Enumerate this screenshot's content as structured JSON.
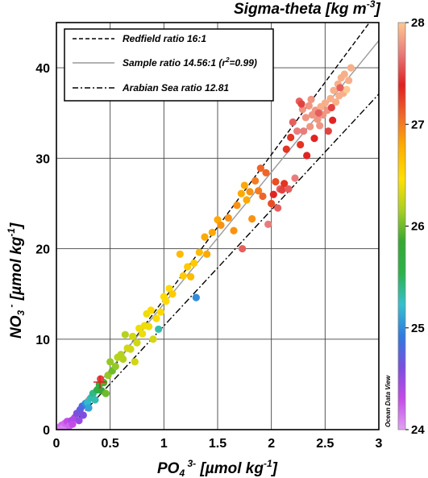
{
  "chart_data": {
    "type": "scatter",
    "xlabel": "PO4 3- [µmol kg-1]",
    "ylabel": "NO3 - [µmol kg-1]",
    "xlim": [
      0,
      3
    ],
    "ylim": [
      0,
      45
    ],
    "xticks": [
      "0",
      "0.5",
      "1",
      "1.5",
      "2",
      "2.5",
      "3"
    ],
    "yticks": [
      "0",
      "10",
      "20",
      "30",
      "40"
    ],
    "grid": true,
    "legend_position": "top-left",
    "colorbar": {
      "title": "Sigma-theta [kg m-3]",
      "range": [
        24,
        28
      ],
      "ticks": [
        "24",
        "25",
        "26",
        "27",
        "28"
      ],
      "colors": [
        "#e2a0f5",
        "#c44ae8",
        "#7a4fe0",
        "#2f7be0",
        "#35c0cf",
        "#2bb24a",
        "#35a832",
        "#a8cf22",
        "#ffe000",
        "#ffb000",
        "#f06a2a",
        "#e02020",
        "#e87a7a",
        "#ffc890"
      ]
    },
    "watermark": "Ocean Data View",
    "lines": [
      {
        "name": "Redfield ratio 16:1",
        "style": "dashed",
        "color": "#000000",
        "x": [
          0.1,
          2.95
        ],
        "y": [
          0.0,
          45.6
        ]
      },
      {
        "name": "Sample ratio 14.56:1 (r²=0.99)",
        "style": "solid",
        "color": "#999999",
        "x": [
          0.05,
          3.0
        ],
        "y": [
          0.1,
          43.0
        ]
      },
      {
        "name": "Arabian Sea ratio 12.81",
        "style": "dashdot",
        "color": "#000000",
        "x": [
          0.05,
          3.0
        ],
        "y": [
          -0.7,
          37.1
        ]
      }
    ],
    "legend": {
      "redfield": "Redfield ratio 16:1",
      "sample": "Sample ratio 14.56:1 (r",
      "sample_sup": "2",
      "sample_tail": "=0.99)",
      "arabian": "Arabian Sea ratio 12.81"
    },
    "points": [
      {
        "x": 0.03,
        "y": 0.3,
        "s": 24.1
      },
      {
        "x": 0.05,
        "y": 0.5,
        "s": 24.2
      },
      {
        "x": 0.06,
        "y": 0.2,
        "s": 24.1
      },
      {
        "x": 0.08,
        "y": 0.7,
        "s": 24.2
      },
      {
        "x": 0.1,
        "y": 0.9,
        "s": 24.3
      },
      {
        "x": 0.12,
        "y": 0.4,
        "s": 24.2
      },
      {
        "x": 0.14,
        "y": 1.0,
        "s": 24.4
      },
      {
        "x": 0.15,
        "y": 0.6,
        "s": 24.3
      },
      {
        "x": 0.17,
        "y": 1.3,
        "s": 24.4
      },
      {
        "x": 0.19,
        "y": 1.8,
        "s": 24.6
      },
      {
        "x": 0.21,
        "y": 1.0,
        "s": 24.5
      },
      {
        "x": 0.22,
        "y": 2.2,
        "s": 24.7
      },
      {
        "x": 0.24,
        "y": 2.6,
        "s": 24.8
      },
      {
        "x": 0.25,
        "y": 1.6,
        "s": 24.6
      },
      {
        "x": 0.27,
        "y": 2.9,
        "s": 25.0
      },
      {
        "x": 0.29,
        "y": 3.0,
        "s": 25.2
      },
      {
        "x": 0.3,
        "y": 2.4,
        "s": 25.1
      },
      {
        "x": 0.32,
        "y": 3.5,
        "s": 25.3
      },
      {
        "x": 0.34,
        "y": 4.0,
        "s": 25.4
      },
      {
        "x": 0.36,
        "y": 3.3,
        "s": 25.3
      },
      {
        "x": 0.38,
        "y": 4.4,
        "s": 25.6
      },
      {
        "x": 0.4,
        "y": 5.0,
        "s": 25.7
      },
      {
        "x": 0.42,
        "y": 4.3,
        "s": 25.8
      },
      {
        "x": 0.44,
        "y": 5.2,
        "s": 25.9
      },
      {
        "x": 0.41,
        "y": 5.6,
        "s": 27.5
      },
      {
        "x": 0.46,
        "y": 4.0,
        "s": 26.0
      },
      {
        "x": 0.48,
        "y": 6.0,
        "s": 26.1
      },
      {
        "x": 0.5,
        "y": 7.5,
        "s": 26.1
      },
      {
        "x": 0.52,
        "y": 6.5,
        "s": 26.0
      },
      {
        "x": 0.55,
        "y": 7.0,
        "s": 26.1
      },
      {
        "x": 0.57,
        "y": 8.0,
        "s": 26.2
      },
      {
        "x": 0.6,
        "y": 8.3,
        "s": 26.2
      },
      {
        "x": 0.62,
        "y": 7.8,
        "s": 26.2
      },
      {
        "x": 0.64,
        "y": 10.5,
        "s": 26.2
      },
      {
        "x": 0.66,
        "y": 9.0,
        "s": 26.3
      },
      {
        "x": 0.69,
        "y": 8.9,
        "s": 26.3
      },
      {
        "x": 0.71,
        "y": 10.3,
        "s": 26.3
      },
      {
        "x": 0.73,
        "y": 7.5,
        "s": 26.3
      },
      {
        "x": 0.75,
        "y": 9.6,
        "s": 26.3
      },
      {
        "x": 0.77,
        "y": 11.2,
        "s": 26.4
      },
      {
        "x": 0.8,
        "y": 10.6,
        "s": 26.4
      },
      {
        "x": 0.82,
        "y": 11.5,
        "s": 26.4
      },
      {
        "x": 0.84,
        "y": 12.8,
        "s": 26.4
      },
      {
        "x": 0.86,
        "y": 11.4,
        "s": 26.4
      },
      {
        "x": 0.88,
        "y": 13.2,
        "s": 26.5
      },
      {
        "x": 0.9,
        "y": 10.0,
        "s": 26.3
      },
      {
        "x": 0.93,
        "y": 12.3,
        "s": 26.5
      },
      {
        "x": 0.95,
        "y": 11.1,
        "s": 25.3
      },
      {
        "x": 0.97,
        "y": 13.0,
        "s": 26.5
      },
      {
        "x": 1.0,
        "y": 14.7,
        "s": 26.5
      },
      {
        "x": 1.02,
        "y": 14.2,
        "s": 26.5
      },
      {
        "x": 1.05,
        "y": 15.6,
        "s": 26.5
      },
      {
        "x": 1.08,
        "y": 15.0,
        "s": 26.6
      },
      {
        "x": 1.15,
        "y": 19.4,
        "s": 26.7
      },
      {
        "x": 1.18,
        "y": 17.0,
        "s": 26.6
      },
      {
        "x": 1.22,
        "y": 18.0,
        "s": 26.6
      },
      {
        "x": 1.25,
        "y": 16.9,
        "s": 26.7
      },
      {
        "x": 1.28,
        "y": 18.4,
        "s": 26.6
      },
      {
        "x": 1.3,
        "y": 14.6,
        "s": 25.0
      },
      {
        "x": 1.33,
        "y": 19.6,
        "s": 26.7
      },
      {
        "x": 1.38,
        "y": 21.3,
        "s": 26.8
      },
      {
        "x": 1.4,
        "y": 19.4,
        "s": 26.8
      },
      {
        "x": 1.45,
        "y": 21.8,
        "s": 26.8
      },
      {
        "x": 1.5,
        "y": 23.2,
        "s": 26.8
      },
      {
        "x": 1.53,
        "y": 22.6,
        "s": 26.9
      },
      {
        "x": 1.6,
        "y": 23.4,
        "s": 26.9
      },
      {
        "x": 1.65,
        "y": 22.0,
        "s": 26.9
      },
      {
        "x": 1.68,
        "y": 24.8,
        "s": 26.9
      },
      {
        "x": 1.72,
        "y": 26.1,
        "s": 26.8
      },
      {
        "x": 1.73,
        "y": 20.0,
        "s": 27.6
      },
      {
        "x": 1.75,
        "y": 27.0,
        "s": 26.8
      },
      {
        "x": 1.77,
        "y": 25.4,
        "s": 26.8
      },
      {
        "x": 1.8,
        "y": 26.3,
        "s": 26.9
      },
      {
        "x": 1.82,
        "y": 23.3,
        "s": 26.9
      },
      {
        "x": 1.85,
        "y": 27.5,
        "s": 27.0
      },
      {
        "x": 1.88,
        "y": 26.4,
        "s": 27.0
      },
      {
        "x": 1.9,
        "y": 28.9,
        "s": 27.1
      },
      {
        "x": 1.92,
        "y": 25.8,
        "s": 27.1
      },
      {
        "x": 1.95,
        "y": 28.4,
        "s": 27.1
      },
      {
        "x": 1.97,
        "y": 22.7,
        "s": 27.7
      },
      {
        "x": 2.0,
        "y": 25.0,
        "s": 27.2
      },
      {
        "x": 2.02,
        "y": 26.0,
        "s": 27.4
      },
      {
        "x": 2.04,
        "y": 27.4,
        "s": 27.2
      },
      {
        "x": 2.06,
        "y": 24.5,
        "s": 27.6
      },
      {
        "x": 2.08,
        "y": 26.6,
        "s": 27.6
      },
      {
        "x": 2.1,
        "y": 26.5,
        "s": 27.5
      },
      {
        "x": 2.12,
        "y": 27.2,
        "s": 27.3
      },
      {
        "x": 2.14,
        "y": 31.0,
        "s": 27.3
      },
      {
        "x": 2.16,
        "y": 26.6,
        "s": 27.6
      },
      {
        "x": 2.18,
        "y": 32.3,
        "s": 27.3
      },
      {
        "x": 2.2,
        "y": 34.0,
        "s": 27.6
      },
      {
        "x": 2.22,
        "y": 27.8,
        "s": 27.7
      },
      {
        "x": 2.24,
        "y": 33.0,
        "s": 27.7
      },
      {
        "x": 2.26,
        "y": 36.3,
        "s": 27.6
      },
      {
        "x": 2.27,
        "y": 31.5,
        "s": 27.3
      },
      {
        "x": 2.29,
        "y": 35.4,
        "s": 27.8
      },
      {
        "x": 2.3,
        "y": 33.0,
        "s": 27.7
      },
      {
        "x": 2.32,
        "y": 34.5,
        "s": 27.8
      },
      {
        "x": 2.33,
        "y": 30.3,
        "s": 27.4
      },
      {
        "x": 2.35,
        "y": 35.8,
        "s": 27.8
      },
      {
        "x": 2.36,
        "y": 33.5,
        "s": 27.8
      },
      {
        "x": 2.38,
        "y": 34.8,
        "s": 27.8
      },
      {
        "x": 2.4,
        "y": 32.2,
        "s": 27.4
      },
      {
        "x": 2.41,
        "y": 35.3,
        "s": 27.8
      },
      {
        "x": 2.43,
        "y": 34.3,
        "s": 27.8
      },
      {
        "x": 2.45,
        "y": 33.6,
        "s": 27.8
      },
      {
        "x": 2.46,
        "y": 35.7,
        "s": 27.9
      },
      {
        "x": 2.48,
        "y": 34.8,
        "s": 27.8
      },
      {
        "x": 2.5,
        "y": 36.1,
        "s": 27.9
      },
      {
        "x": 2.52,
        "y": 35.3,
        "s": 27.8
      },
      {
        "x": 2.53,
        "y": 33.0,
        "s": 27.5
      },
      {
        "x": 2.55,
        "y": 36.6,
        "s": 27.9
      },
      {
        "x": 2.57,
        "y": 34.2,
        "s": 27.4
      },
      {
        "x": 2.58,
        "y": 37.5,
        "s": 27.9
      },
      {
        "x": 2.6,
        "y": 36.2,
        "s": 27.9
      },
      {
        "x": 2.62,
        "y": 38.2,
        "s": 27.9
      },
      {
        "x": 2.63,
        "y": 36.9,
        "s": 27.9
      },
      {
        "x": 2.65,
        "y": 38.9,
        "s": 27.9
      },
      {
        "x": 2.67,
        "y": 37.2,
        "s": 27.9
      },
      {
        "x": 2.68,
        "y": 39.3,
        "s": 27.9
      },
      {
        "x": 2.7,
        "y": 37.6,
        "s": 28.0
      },
      {
        "x": 2.72,
        "y": 38.6,
        "s": 27.9
      },
      {
        "x": 2.74,
        "y": 40.0,
        "s": 27.9
      },
      {
        "x": 2.28,
        "y": 36.0,
        "s": 27.5
      },
      {
        "x": 2.37,
        "y": 36.5,
        "s": 27.8
      },
      {
        "x": 2.44,
        "y": 35.0,
        "s": 27.6
      },
      {
        "x": 2.56,
        "y": 35.6,
        "s": 27.5
      },
      {
        "x": 2.64,
        "y": 37.8,
        "s": 27.6
      }
    ]
  }
}
